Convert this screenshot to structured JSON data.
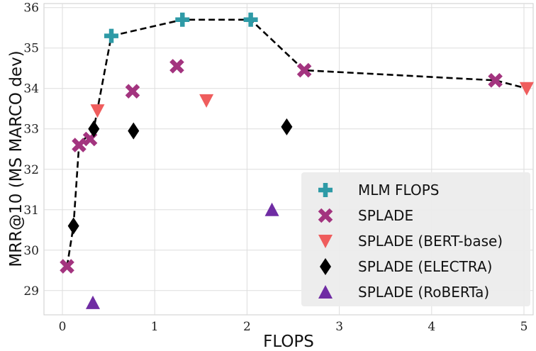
{
  "chart_data": {
    "type": "scatter",
    "xlabel": "FLOPS",
    "ylabel": "MRR@10 (MS MARCO dev)",
    "xlim": [
      -0.2,
      5.1
    ],
    "ylim": [
      28.4,
      36.1
    ],
    "xticks": [
      0,
      1,
      2,
      3,
      4,
      5
    ],
    "yticks": [
      29,
      30,
      31,
      32,
      33,
      34,
      35,
      36
    ],
    "grid": true,
    "legend_position": "lower-right",
    "frontier": {
      "style": "dashed",
      "color": "#000000",
      "x": [
        0.05,
        0.12,
        0.18,
        0.34,
        0.53,
        1.3,
        2.04,
        2.62,
        4.69,
        5.03
      ],
      "y": [
        29.6,
        30.6,
        32.6,
        33.0,
        35.3,
        35.7,
        35.7,
        34.45,
        34.2,
        34.0
      ]
    },
    "series": [
      {
        "name": "MLM FLOPS",
        "marker": "plus",
        "color": "#2e9aa6",
        "x": [
          0.53,
          1.3,
          2.04
        ],
        "y": [
          35.3,
          35.7,
          35.7
        ]
      },
      {
        "name": "SPLADE",
        "marker": "x",
        "color": "#a3347f",
        "x": [
          0.05,
          0.18,
          0.3,
          0.76,
          1.24,
          2.62,
          4.69
        ],
        "y": [
          29.6,
          32.6,
          32.75,
          33.93,
          34.55,
          34.45,
          34.2
        ]
      },
      {
        "name": "SPLADE (BERT-base)",
        "marker": "triangle-down",
        "color": "#ef5d5d",
        "x": [
          0.38,
          1.56,
          5.03
        ],
        "y": [
          33.45,
          33.7,
          34.0
        ]
      },
      {
        "name": "SPLADE (ELECTRA)",
        "marker": "diamond",
        "color": "#000000",
        "x": [
          0.12,
          0.34,
          0.77,
          2.43
        ],
        "y": [
          30.6,
          33.0,
          32.95,
          33.05
        ]
      },
      {
        "name": "SPLADE (RoBERTa)",
        "marker": "triangle-up",
        "color": "#6f2ca3",
        "x": [
          0.33,
          2.27
        ],
        "y": [
          28.7,
          31.0
        ]
      }
    ]
  }
}
